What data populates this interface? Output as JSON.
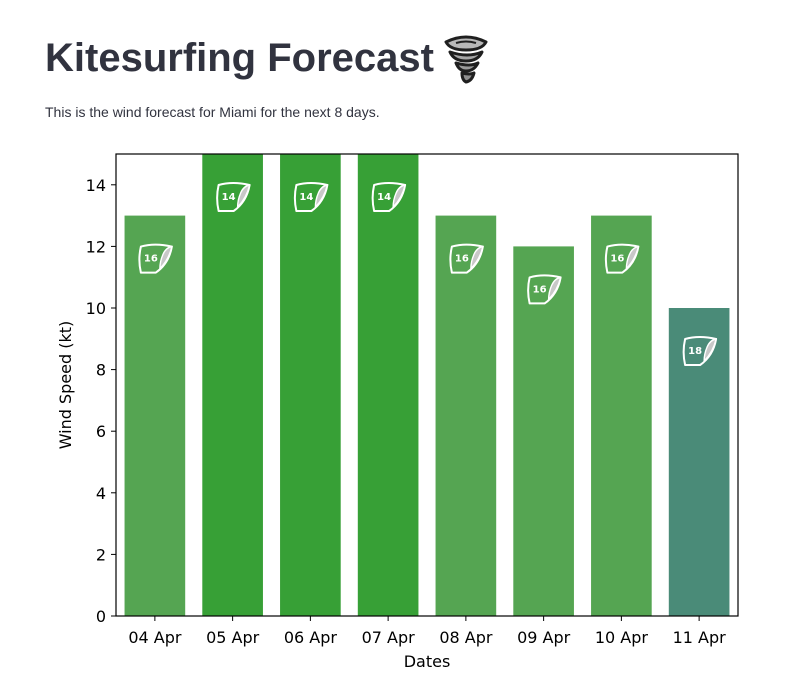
{
  "header": {
    "title": "Kitesurfing Forecast",
    "title_icon": "tornado-icon",
    "description": "This is the wind forecast for Miami for the next 8 days."
  },
  "chart_data": {
    "type": "bar",
    "categories": [
      "04 Apr",
      "05 Apr",
      "06 Apr",
      "07 Apr",
      "08 Apr",
      "09 Apr",
      "10 Apr",
      "11 Apr"
    ],
    "values": [
      13,
      15,
      15,
      15,
      13,
      12,
      13,
      10
    ],
    "kite_sizes": [
      16,
      14,
      14,
      14,
      16,
      16,
      16,
      18
    ],
    "bar_colors": [
      "#55a552",
      "#37a036",
      "#37a036",
      "#37a036",
      "#55a552",
      "#55a552",
      "#55a552",
      "#4a8b78"
    ],
    "bar_icon": "kite-icon",
    "xlabel": "Dates",
    "ylabel": "Wind Speed (kt)",
    "ylim": [
      0,
      15
    ],
    "yticks": [
      0,
      2,
      4,
      6,
      8,
      10,
      12,
      14
    ],
    "grid": false,
    "legend": "none"
  }
}
